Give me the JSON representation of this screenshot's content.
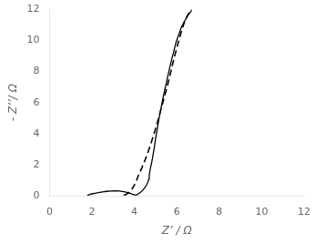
{
  "chart_data": {
    "type": "line",
    "xlabel": "Z’ / Ω",
    "ylabel": "- Z’’/ Ω",
    "xlim": [
      0,
      12
    ],
    "ylim": [
      0,
      12
    ],
    "xticks": [
      0,
      2,
      4,
      6,
      8,
      10,
      12
    ],
    "yticks": [
      0,
      2,
      4,
      6,
      8,
      10,
      12
    ],
    "grid": false,
    "series": [
      {
        "color": "#000000",
        "line_style": "solid",
        "x": [
          1.78,
          1.82,
          1.9,
          2.0,
          2.15,
          2.3,
          2.5,
          2.7,
          2.9,
          3.1,
          3.3,
          3.5,
          3.7,
          3.8,
          3.85,
          3.9,
          3.95,
          4.0,
          4.05,
          4.1,
          4.15,
          4.2,
          4.3,
          4.4,
          4.5,
          4.6,
          4.65,
          4.68,
          4.7,
          4.72,
          4.75,
          4.8,
          4.85,
          4.9,
          4.95,
          5.0,
          5.08,
          5.15,
          5.25,
          5.35,
          5.48,
          5.6,
          5.72,
          5.85,
          5.96,
          6.1,
          6.22,
          6.35,
          6.48,
          6.58,
          6.65,
          6.7
        ],
        "values": [
          0.04,
          0.06,
          0.1,
          0.14,
          0.18,
          0.22,
          0.26,
          0.3,
          0.32,
          0.33,
          0.32,
          0.28,
          0.22,
          0.18,
          0.15,
          0.12,
          0.1,
          0.08,
          0.07,
          0.08,
          0.1,
          0.15,
          0.25,
          0.38,
          0.55,
          0.78,
          0.95,
          1.1,
          1.3,
          1.5,
          1.75,
          2.05,
          2.4,
          2.8,
          3.2,
          3.7,
          4.3,
          4.9,
          5.6,
          6.3,
          7.1,
          7.85,
          8.55,
          9.25,
          9.85,
          10.4,
          10.85,
          11.2,
          11.5,
          11.7,
          11.82,
          11.92
        ]
      },
      {
        "color": "#000000",
        "line_style": "dashed",
        "x": [
          3.5,
          3.6,
          3.7,
          3.8,
          3.9,
          4.0,
          4.1,
          4.2,
          4.35,
          4.5,
          4.65,
          4.8,
          4.95,
          5.1,
          5.25,
          5.4,
          5.55,
          5.68,
          5.8,
          5.92,
          6.04,
          6.15,
          6.25,
          6.35,
          6.45,
          6.53,
          6.6,
          6.65,
          6.68,
          6.7
        ],
        "values": [
          0.05,
          0.1,
          0.18,
          0.3,
          0.48,
          0.7,
          1.0,
          1.35,
          1.8,
          2.3,
          2.85,
          3.45,
          4.1,
          4.8,
          5.55,
          6.3,
          7.05,
          7.75,
          8.45,
          9.1,
          9.7,
          10.25,
          10.72,
          11.12,
          11.45,
          11.65,
          11.8,
          11.88,
          11.94,
          11.98
        ]
      }
    ]
  }
}
